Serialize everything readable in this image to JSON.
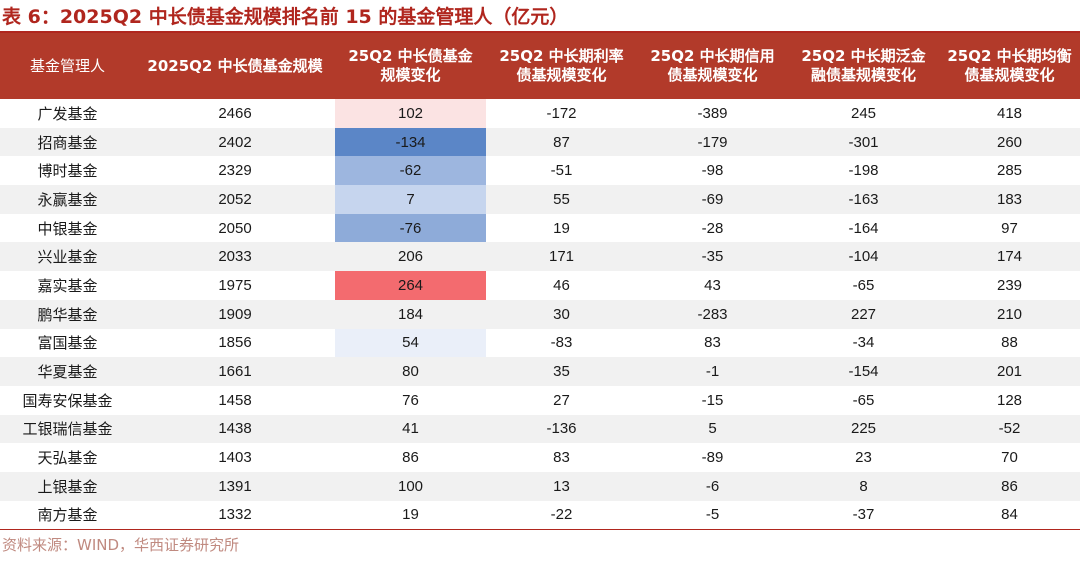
{
  "caption": "表 6：2025Q2 中长债基金规模排名前 15 的基金管理人（亿元）",
  "source": "资料来源：WIND，华西证券研究所",
  "table": {
    "headers": [
      "基金管理人",
      "2025Q2 中长债基金规模",
      "25Q2 中长债基金规模变化",
      "25Q2 中长期利率债基规模变化",
      "25Q2 中长期信用债基规模变化",
      "25Q2 中长期泛金融债基规模变化",
      "25Q2 中长期均衡债基规模变化"
    ],
    "rows": [
      {
        "name": "广发基金",
        "size": "2466",
        "change": "102",
        "rate": "-172",
        "credit": "-389",
        "fin": "245",
        "bal": "418",
        "change_color": "#fbe3e3"
      },
      {
        "name": "招商基金",
        "size": "2402",
        "change": "-134",
        "rate": "87",
        "credit": "-179",
        "fin": "-301",
        "bal": "260",
        "change_color": "#5b86c7"
      },
      {
        "name": "博时基金",
        "size": "2329",
        "change": "-62",
        "rate": "-51",
        "credit": "-98",
        "fin": "-198",
        "bal": "285",
        "change_color": "#9db6df"
      },
      {
        "name": "永赢基金",
        "size": "2052",
        "change": "7",
        "rate": "55",
        "credit": "-69",
        "fin": "-163",
        "bal": "183",
        "change_color": "#c6d5ee"
      },
      {
        "name": "中银基金",
        "size": "2050",
        "change": "-76",
        "rate": "19",
        "credit": "-28",
        "fin": "-164",
        "bal": "97",
        "change_color": "#8eabd9"
      },
      {
        "name": "兴业基金",
        "size": "2033",
        "change": "206",
        "rate": "171",
        "credit": "-35",
        "fin": "-104",
        "bal": "174",
        "change_color": ""
      },
      {
        "name": "嘉实基金",
        "size": "1975",
        "change": "264",
        "rate": "46",
        "credit": "43",
        "fin": "-65",
        "bal": "239",
        "change_color": "#f36b6f"
      },
      {
        "name": "鹏华基金",
        "size": "1909",
        "change": "184",
        "rate": "30",
        "credit": "-283",
        "fin": "227",
        "bal": "210",
        "change_color": ""
      },
      {
        "name": "富国基金",
        "size": "1856",
        "change": "54",
        "rate": "-83",
        "credit": "83",
        "fin": "-34",
        "bal": "88",
        "change_color": "#eaeff9"
      },
      {
        "name": "华夏基金",
        "size": "1661",
        "change": "80",
        "rate": "35",
        "credit": "-1",
        "fin": "-154",
        "bal": "201",
        "change_color": ""
      },
      {
        "name": "国寿安保基金",
        "size": "1458",
        "change": "76",
        "rate": "27",
        "credit": "-15",
        "fin": "-65",
        "bal": "128",
        "change_color": ""
      },
      {
        "name": "工银瑞信基金",
        "size": "1438",
        "change": "41",
        "rate": "-136",
        "credit": "5",
        "fin": "225",
        "bal": "-52",
        "change_color": ""
      },
      {
        "name": "天弘基金",
        "size": "1403",
        "change": "86",
        "rate": "83",
        "credit": "-89",
        "fin": "23",
        "bal": "70",
        "change_color": ""
      },
      {
        "name": "上银基金",
        "size": "1391",
        "change": "100",
        "rate": "13",
        "credit": "-6",
        "fin": "8",
        "bal": "86",
        "change_color": ""
      },
      {
        "name": "南方基金",
        "size": "1332",
        "change": "19",
        "rate": "-22",
        "credit": "-5",
        "fin": "-37",
        "bal": "84",
        "change_color": ""
      }
    ]
  }
}
